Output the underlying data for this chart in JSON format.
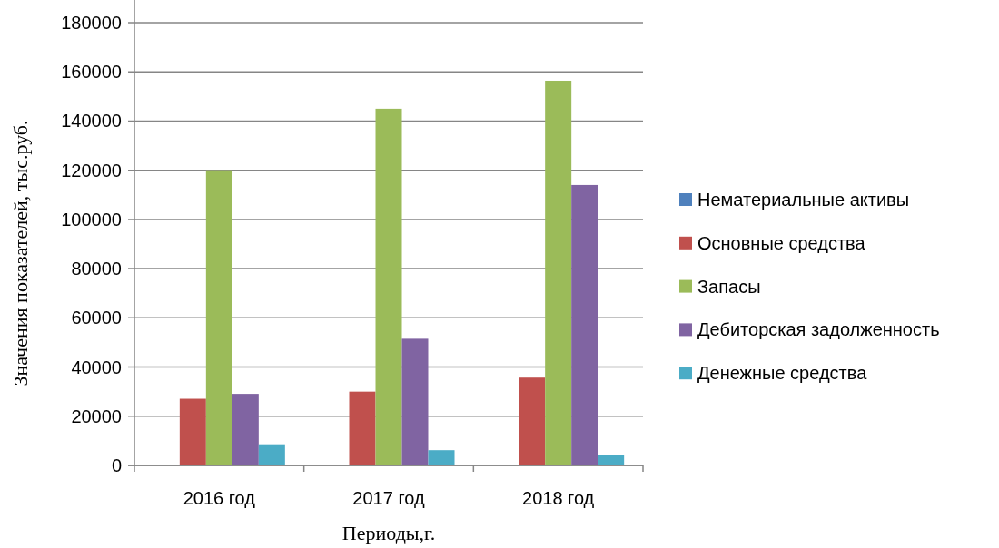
{
  "chart_data": {
    "type": "bar",
    "categories": [
      "2016 год",
      "2017 год",
      "2018 год"
    ],
    "series": [
      {
        "name": "Нематериальные активы",
        "color": "#4f81bd",
        "values": [
          null,
          null,
          null
        ]
      },
      {
        "name": "Основные средства",
        "color": "#c0504d",
        "values": [
          27100,
          30000,
          35700
        ]
      },
      {
        "name": "Запасы",
        "color": "#9bbb59",
        "values": [
          120000,
          145000,
          156400
        ]
      },
      {
        "name": "Дебиторская задолженность",
        "color": "#8064a2",
        "values": [
          29100,
          51500,
          114000
        ]
      },
      {
        "name": "Денежные средства",
        "color": "#4bacc6",
        "values": [
          8600,
          6200,
          4300
        ]
      }
    ],
    "xlabel": "Периоды,г.",
    "ylabel": "Значения показателей, тыс.руб.",
    "ylim": [
      0,
      180000
    ],
    "yticks": [
      0,
      20000,
      40000,
      60000,
      80000,
      100000,
      120000,
      140000,
      160000,
      180000
    ],
    "grid": "y",
    "legend": "right"
  }
}
